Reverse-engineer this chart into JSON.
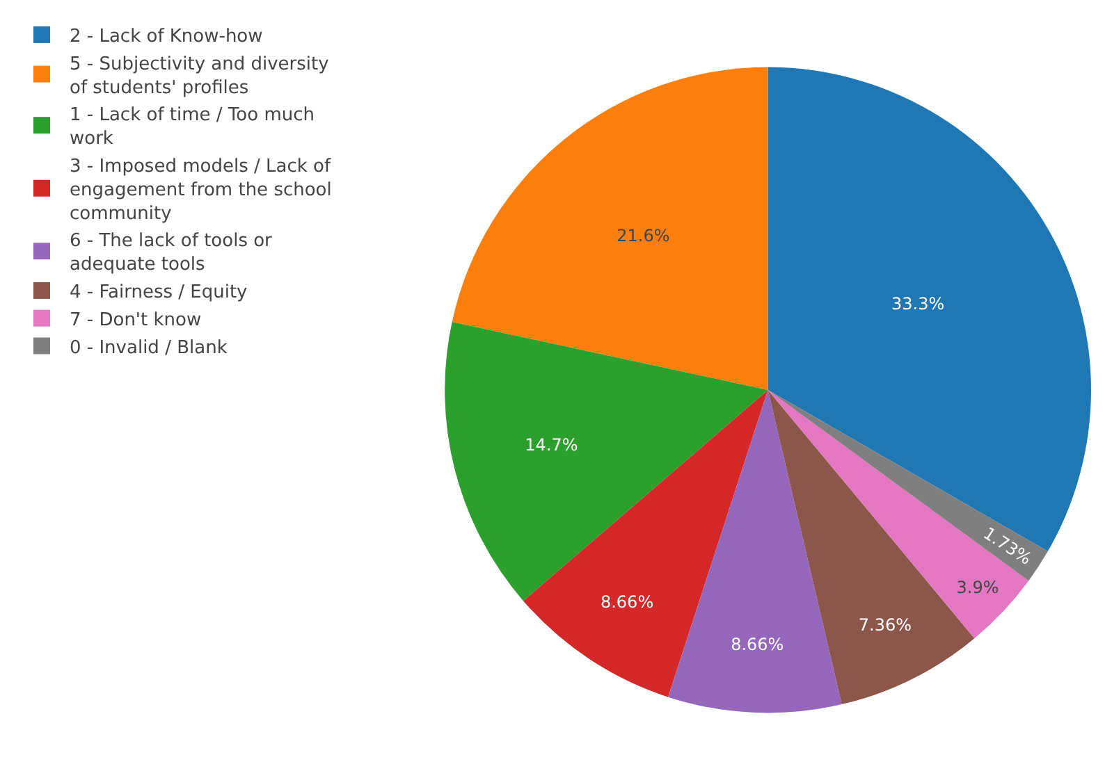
{
  "chart_data": {
    "type": "pie",
    "categories": [
      "2 - Lack of Know-how",
      "5 - Subjectivity and diversity of students' profiles",
      "1 - Lack of time / Too much work",
      "3 - Imposed models / Lack of engagement from the school community",
      "6 - The lack of tools or adequate tools",
      "4 - Fairness / Equity",
      "7 - Don't know",
      "0 - Invalid / Blank"
    ],
    "values": [
      33.3,
      21.6,
      14.7,
      8.66,
      8.66,
      7.36,
      3.9,
      1.73
    ],
    "value_labels": [
      "33.3%",
      "21.6%",
      "14.7%",
      "8.66%",
      "8.66%",
      "7.36%",
      "3.9%",
      "1.73%"
    ],
    "colors": [
      "#1f77b4",
      "#ff7f0e",
      "#2ca02c",
      "#d62728",
      "#9467bd",
      "#8c564b",
      "#e377c2",
      "#7f7f7f"
    ],
    "legend": "top left"
  }
}
